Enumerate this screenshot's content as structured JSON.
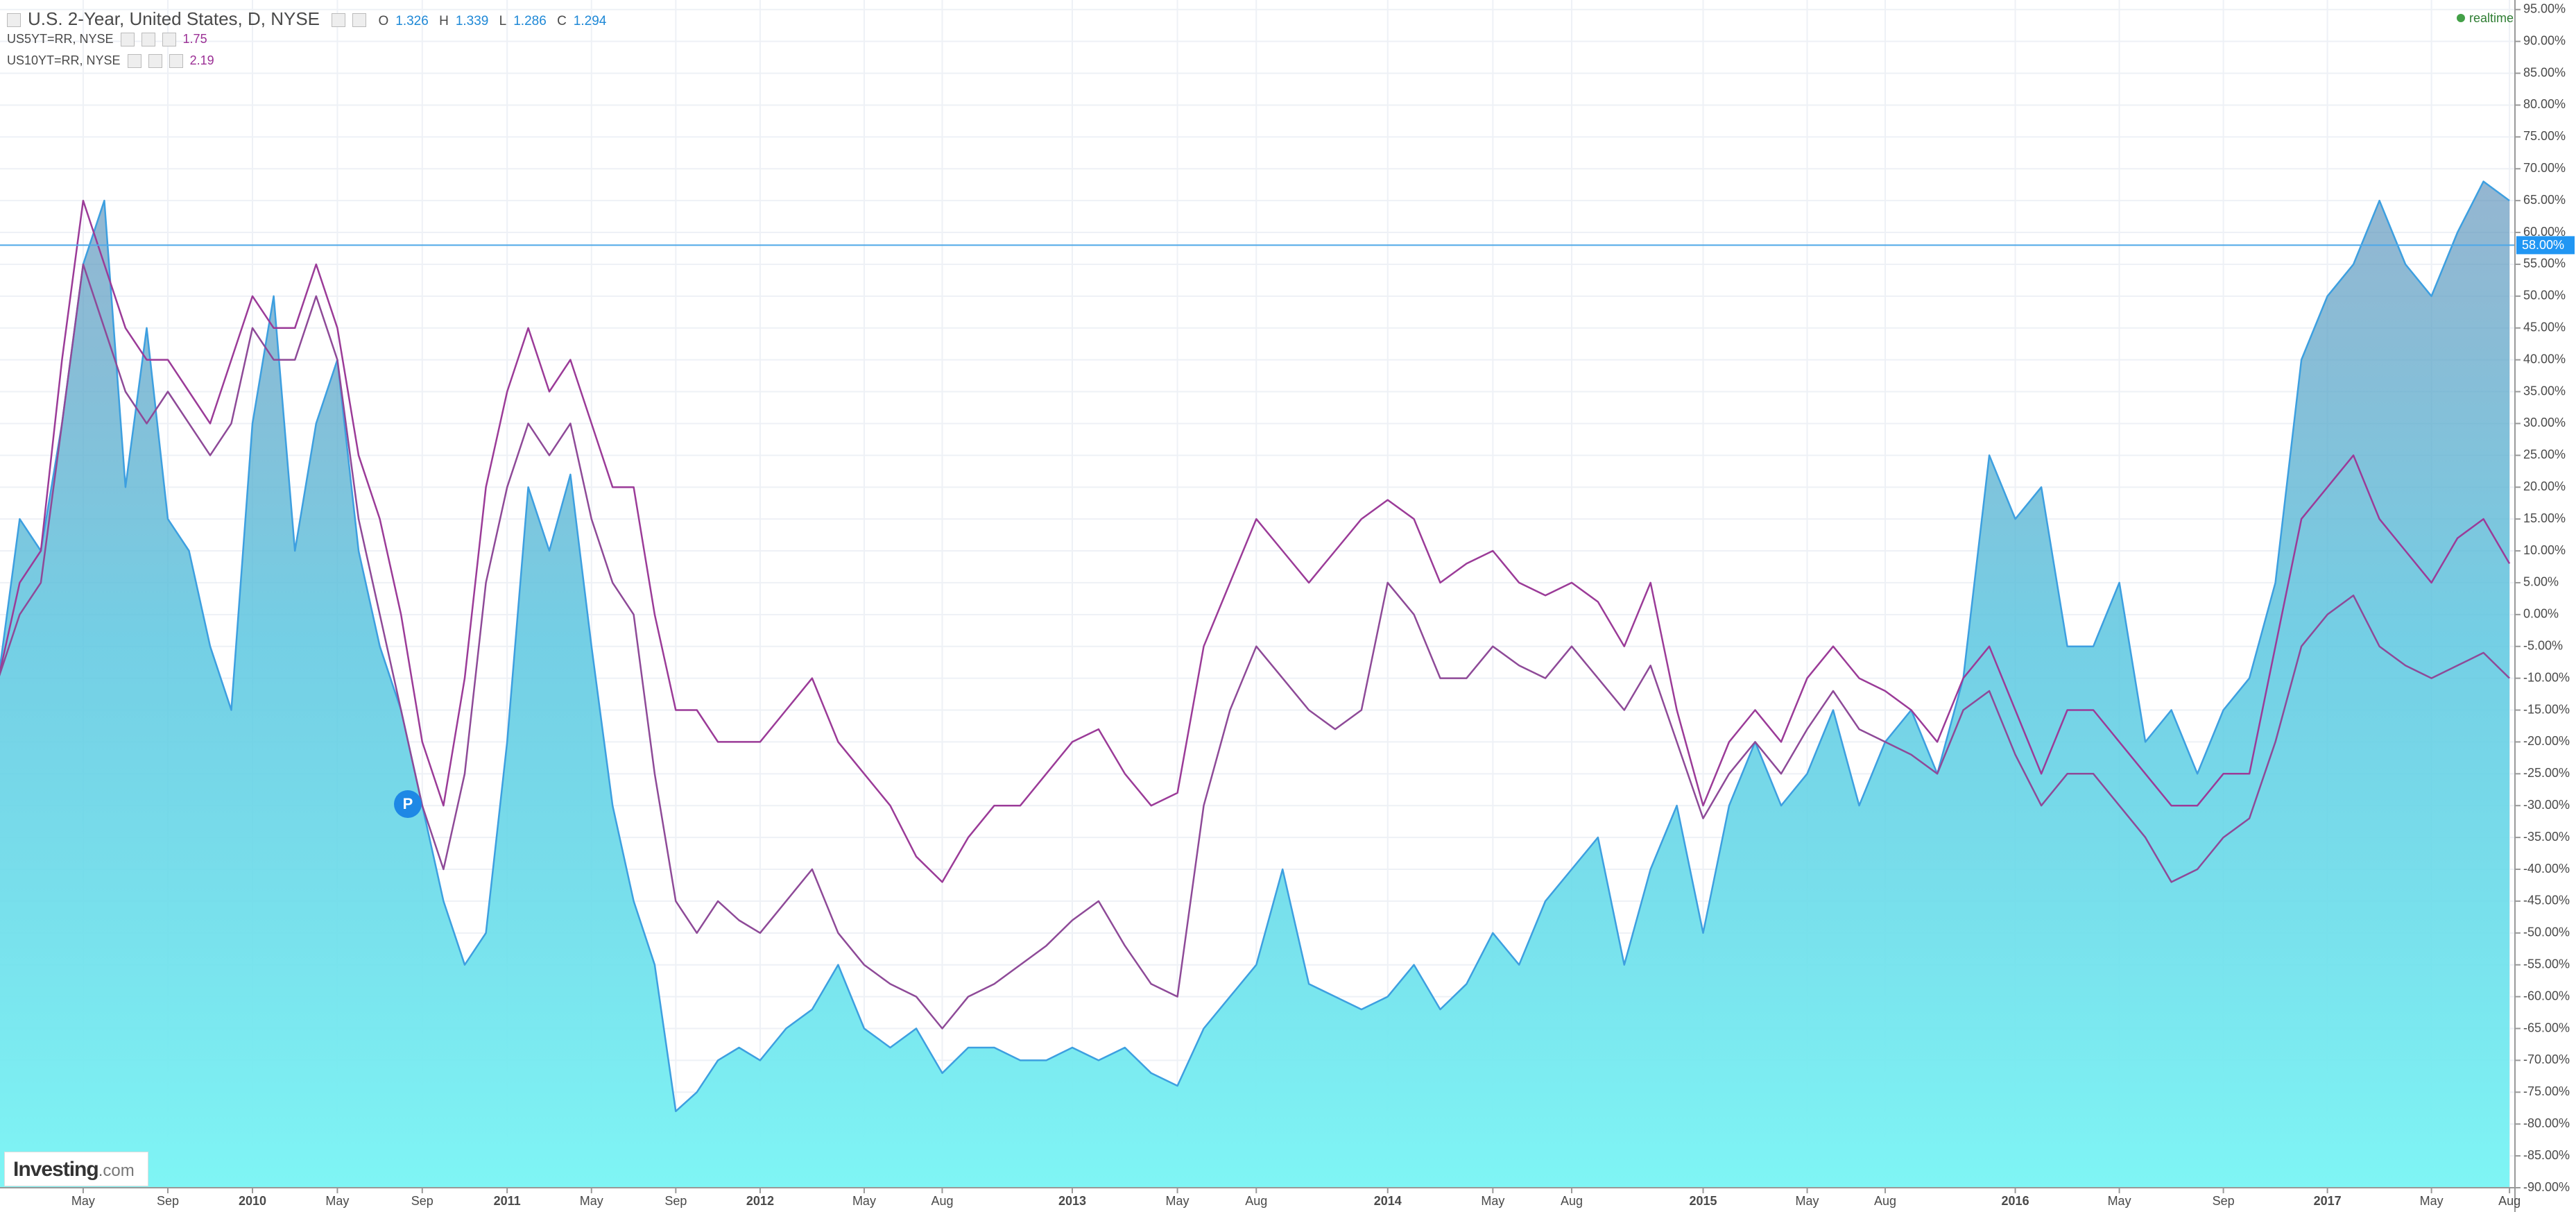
{
  "chart_data": {
    "type": "line",
    "title": "U.S. 2-Year, United States, D, NYSE",
    "ohlc": [
      {
        "label": "O",
        "value": "1.326"
      },
      {
        "label": "H",
        "value": "1.339"
      },
      {
        "label": "L",
        "value": "1.286"
      },
      {
        "label": "C",
        "value": "1.294"
      }
    ],
    "status": "realtime",
    "brand": {
      "name": "Investing",
      "suffix": ".com"
    },
    "marker_label": "P",
    "price_line": {
      "value": 58,
      "label": "58.00%"
    },
    "x": [
      "2009-01",
      "2009-02",
      "2009-03",
      "2009-04",
      "2009-05",
      "2009-06",
      "2009-07",
      "2009-08",
      "2009-09",
      "2009-10",
      "2009-11",
      "2009-12",
      "2010-01",
      "2010-02",
      "2010-03",
      "2010-04",
      "2010-05",
      "2010-06",
      "2010-07",
      "2010-08",
      "2010-09",
      "2010-10",
      "2010-11",
      "2010-12",
      "2011-01",
      "2011-02",
      "2011-03",
      "2011-04",
      "2011-05",
      "2011-06",
      "2011-07",
      "2011-08",
      "2011-09",
      "2011-10",
      "2011-11",
      "2011-12",
      "2012-01",
      "2012-02",
      "2012-03",
      "2012-04",
      "2012-05",
      "2012-06",
      "2012-07",
      "2012-08",
      "2012-09",
      "2012-10",
      "2012-11",
      "2012-12",
      "2013-01",
      "2013-02",
      "2013-03",
      "2013-04",
      "2013-05",
      "2013-06",
      "2013-07",
      "2013-08",
      "2013-09",
      "2013-10",
      "2013-11",
      "2013-12",
      "2014-01",
      "2014-02",
      "2014-03",
      "2014-04",
      "2014-05",
      "2014-06",
      "2014-07",
      "2014-08",
      "2014-09",
      "2014-10",
      "2014-11",
      "2014-12",
      "2015-01",
      "2015-02",
      "2015-03",
      "2015-04",
      "2015-05",
      "2015-06",
      "2015-07",
      "2015-08",
      "2015-09",
      "2015-10",
      "2015-11",
      "2015-12",
      "2016-01",
      "2016-02",
      "2016-03",
      "2016-04",
      "2016-05",
      "2016-06",
      "2016-07",
      "2016-08",
      "2016-09",
      "2016-10",
      "2016-11",
      "2016-12",
      "2017-01",
      "2017-02",
      "2017-03",
      "2017-04",
      "2017-05",
      "2017-06",
      "2017-07",
      "2017-08"
    ],
    "series": [
      {
        "name": "U.S. 2-Year",
        "style": "area",
        "color": "#3d9fe0",
        "values": [
          -10,
          15,
          10,
          30,
          55,
          65,
          20,
          45,
          15,
          10,
          -5,
          -15,
          30,
          50,
          10,
          30,
          40,
          10,
          -5,
          -15,
          -30,
          -45,
          -55,
          -50,
          -20,
          20,
          10,
          22,
          -5,
          -30,
          -45,
          -55,
          -78,
          -75,
          -70,
          -68,
          -70,
          -65,
          -62,
          -55,
          -65,
          -68,
          -65,
          -72,
          -68,
          -68,
          -70,
          -70,
          -68,
          -70,
          -68,
          -72,
          -74,
          -65,
          -60,
          -55,
          -40,
          -58,
          -60,
          -62,
          -60,
          -55,
          -62,
          -58,
          -50,
          -55,
          -45,
          -40,
          -35,
          -55,
          -40,
          -30,
          -50,
          -30,
          -20,
          -30,
          -25,
          -15,
          -30,
          -20,
          -15,
          -25,
          -10,
          25,
          15,
          20,
          -5,
          -5,
          5,
          -20,
          -15,
          -25,
          -15,
          -10,
          5,
          40,
          50,
          55,
          65,
          55,
          50,
          60,
          68,
          65
        ]
      },
      {
        "name": "US5YT=RR, NYSE",
        "last": "1.75",
        "color": "#9b3b98",
        "values": [
          -10,
          5,
          10,
          40,
          65,
          55,
          45,
          40,
          40,
          35,
          30,
          40,
          50,
          45,
          45,
          55,
          45,
          25,
          15,
          0,
          -20,
          -30,
          -10,
          20,
          35,
          45,
          35,
          40,
          30,
          20,
          20,
          0,
          -15,
          -15,
          -20,
          -20,
          -20,
          -15,
          -10,
          -20,
          -25,
          -30,
          -38,
          -42,
          -35,
          -30,
          -30,
          -25,
          -20,
          -18,
          -25,
          -30,
          -28,
          -5,
          5,
          15,
          10,
          5,
          10,
          15,
          18,
          15,
          5,
          8,
          10,
          5,
          3,
          5,
          2,
          -5,
          5,
          -15,
          -30,
          -20,
          -15,
          -20,
          -10,
          -5,
          -10,
          -12,
          -15,
          -20,
          -10,
          -5,
          -15,
          -25,
          -15,
          -15,
          -20,
          -25,
          -30,
          -30,
          -25,
          -25,
          -5,
          15,
          20,
          25,
          15,
          10,
          5,
          12,
          15,
          8
        ]
      },
      {
        "name": "US10YT=RR, NYSE",
        "last": "2.19",
        "color": "#8e4a98",
        "values": [
          -10,
          0,
          5,
          30,
          55,
          45,
          35,
          30,
          35,
          30,
          25,
          30,
          45,
          40,
          40,
          50,
          40,
          15,
          0,
          -15,
          -30,
          -40,
          -25,
          5,
          20,
          30,
          25,
          30,
          15,
          5,
          0,
          -25,
          -45,
          -50,
          -45,
          -48,
          -50,
          -45,
          -40,
          -50,
          -55,
          -58,
          -60,
          -65,
          -60,
          -58,
          -55,
          -52,
          -48,
          -45,
          -52,
          -58,
          -60,
          -30,
          -15,
          -5,
          -10,
          -15,
          -18,
          -15,
          5,
          0,
          -10,
          -10,
          -5,
          -8,
          -10,
          -5,
          -10,
          -15,
          -8,
          -20,
          -32,
          -25,
          -20,
          -25,
          -18,
          -12,
          -18,
          -20,
          -22,
          -25,
          -15,
          -12,
          -22,
          -30,
          -25,
          -25,
          -30,
          -35,
          -42,
          -40,
          -35,
          -32,
          -20,
          -5,
          0,
          3,
          -5,
          -8,
          -10,
          -8,
          -6,
          -10
        ]
      }
    ],
    "ylim": [
      -90,
      96.5
    ],
    "yticks": [
      {
        "value": 95,
        "label": "95.00%"
      },
      {
        "value": 90,
        "label": "90.00%"
      },
      {
        "value": 85,
        "label": "85.00%"
      },
      {
        "value": 80,
        "label": "80.00%"
      },
      {
        "value": 75,
        "label": "75.00%"
      },
      {
        "value": 70,
        "label": "70.00%"
      },
      {
        "value": 65,
        "label": "65.00%"
      },
      {
        "value": 60,
        "label": "60.00%"
      },
      {
        "value": 55,
        "label": "55.00%"
      },
      {
        "value": 50,
        "label": "50.00%"
      },
      {
        "value": 45,
        "label": "45.00%"
      },
      {
        "value": 40,
        "label": "40.00%"
      },
      {
        "value": 35,
        "label": "35.00%"
      },
      {
        "value": 30,
        "label": "30.00%"
      },
      {
        "value": 25,
        "label": "25.00%"
      },
      {
        "value": 20,
        "label": "20.00%"
      },
      {
        "value": 15,
        "label": "15.00%"
      },
      {
        "value": 10,
        "label": "10.00%"
      },
      {
        "value": 5,
        "label": "5.00%"
      },
      {
        "value": 0,
        "label": "0.00%"
      },
      {
        "value": -5,
        "label": "-5.00%"
      },
      {
        "value": -10,
        "label": "-10.00%"
      },
      {
        "value": -15,
        "label": "-15.00%"
      },
      {
        "value": -20,
        "label": "-20.00%"
      },
      {
        "value": -25,
        "label": "-25.00%"
      },
      {
        "value": -30,
        "label": "-30.00%"
      },
      {
        "value": -35,
        "label": "-35.00%"
      },
      {
        "value": -40,
        "label": "-40.00%"
      },
      {
        "value": -45,
        "label": "-45.00%"
      },
      {
        "value": -50,
        "label": "-50.00%"
      },
      {
        "value": -55,
        "label": "-55.00%"
      },
      {
        "value": -60,
        "label": "-60.00%"
      },
      {
        "value": -65,
        "label": "-65.00%"
      },
      {
        "value": -70,
        "label": "-70.00%"
      },
      {
        "value": -75,
        "label": "-75.00%"
      },
      {
        "value": -80,
        "label": "-80.00%"
      },
      {
        "value": -85,
        "label": "-85.00%"
      },
      {
        "value": -90,
        "label": "-90.00%"
      }
    ],
    "xticks": [
      {
        "value": "2009-05",
        "label": "May"
      },
      {
        "value": "2009-09",
        "label": "Sep"
      },
      {
        "value": "2010-01",
        "label": "2010"
      },
      {
        "value": "2010-05",
        "label": "May"
      },
      {
        "value": "2010-09",
        "label": "Sep"
      },
      {
        "value": "2011-01",
        "label": "2011"
      },
      {
        "value": "2011-05",
        "label": "May"
      },
      {
        "value": "2011-09",
        "label": "Sep"
      },
      {
        "value": "2012-01",
        "label": "2012"
      },
      {
        "value": "2012-05",
        "label": "May"
      },
      {
        "value": "2012-08",
        "label": "Aug"
      },
      {
        "value": "2013-01",
        "label": "2013"
      },
      {
        "value": "2013-05",
        "label": "May"
      },
      {
        "value": "2013-08",
        "label": "Aug"
      },
      {
        "value": "2014-01",
        "label": "2014"
      },
      {
        "value": "2014-05",
        "label": "May"
      },
      {
        "value": "2014-08",
        "label": "Aug"
      },
      {
        "value": "2015-01",
        "label": "2015"
      },
      {
        "value": "2015-05",
        "label": "May"
      },
      {
        "value": "2015-08",
        "label": "Aug"
      },
      {
        "value": "2016-01",
        "label": "2016"
      },
      {
        "value": "2016-05",
        "label": "May"
      },
      {
        "value": "2016-09",
        "label": "Sep"
      },
      {
        "value": "2017-01",
        "label": "2017"
      },
      {
        "value": "2017-05",
        "label": "May"
      },
      {
        "value": "2017-08",
        "label": "Aug"
      }
    ],
    "grid": true
  }
}
